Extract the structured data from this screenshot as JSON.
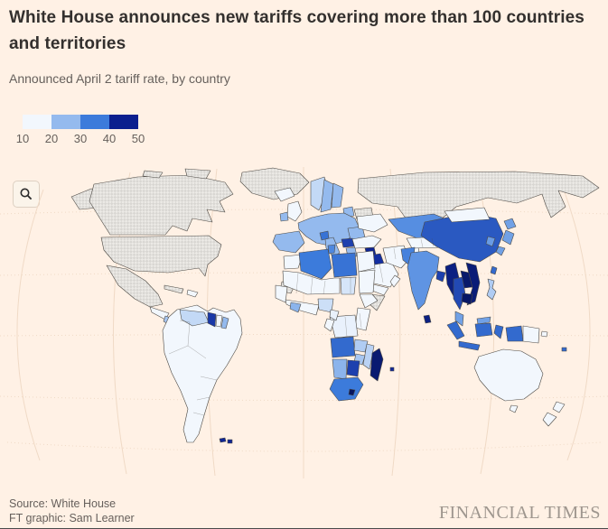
{
  "header": {
    "title": "White House announces new tariffs covering more than 100 countries and territories",
    "subtitle": "Announced April 2 tariff rate, by country"
  },
  "legend": {
    "ticks": [
      "10",
      "20",
      "30",
      "40",
      "50"
    ],
    "colors": [
      "#F2F7FD",
      "#94BAEE",
      "#3C7BDB",
      "#0B1F8E"
    ]
  },
  "map": {
    "zoom_button_icon": "magnifier-icon"
  },
  "footer": {
    "source": "Source: White House",
    "credit": "FT graphic: Sam Learner",
    "brand": "FINANCIAL TIMES"
  },
  "colors": {
    "background": "#FFF1E5",
    "title_text": "#33302E",
    "muted_text": "#66605C",
    "graticule": "#F0DAC6",
    "country_border": "#4D4A45",
    "no_data_hatch": "#D8D6D2",
    "brand_text": "#9E968E"
  },
  "chart_data": {
    "type": "heatmap",
    "subtype": "choropleth_world_map",
    "title": "White House announces new tariffs covering more than 100 countries and territories",
    "subtitle": "Announced April 2 tariff rate, by country",
    "unit": "percent tariff rate",
    "scale_ticks": [
      10,
      20,
      30,
      40,
      50
    ],
    "scale_stops": [
      {
        "value": 10,
        "color": "#F2F7FD"
      },
      {
        "value": 20,
        "color": "#94BAEE"
      },
      {
        "value": 30,
        "color": "#3C7BDB"
      },
      {
        "value": 40,
        "color": "#10279A"
      },
      {
        "value": 50,
        "color": "#06155F"
      }
    ],
    "legend_position": "top-left",
    "excluded": [
      "United States",
      "Canada",
      "Mexico",
      "Greenland",
      "Russia",
      "Belarus",
      "Cuba",
      "North Korea",
      "Somalia",
      "Western Sahara"
    ],
    "rates": {
      "United Kingdom": 10,
      "European Union": 20,
      "Iceland": 10,
      "Norway": 15,
      "Switzerland": 31,
      "Ukraine": 10,
      "Moldova": 31,
      "Serbia": 37,
      "Bosnia and Herzegovina": 35,
      "North Macedonia": 33,
      "Turkey": 10,
      "Kazakhstan": 27,
      "Uzbekistan": 10,
      "Afghanistan": 10,
      "Pakistan": 29,
      "India": 26,
      "Bangladesh": 37,
      "Sri Lanka": 44,
      "China": 34,
      "Mongolia": 10,
      "South Korea": 25,
      "Japan": 24,
      "Taiwan": 32,
      "Myanmar": 44,
      "Thailand": 36,
      "Laos": 48,
      "Vietnam": 46,
      "Cambodia": 49,
      "Malaysia": 24,
      "Philippines": 17,
      "Indonesia": 32,
      "Papua New Guinea": 10,
      "Fiji": 32,
      "Australia": 10,
      "New Zealand": 10,
      "Israel": 17,
      "Jordan": 20,
      "Syria": 41,
      "Iraq": 39,
      "Iran": 10,
      "Saudi Arabia": 10,
      "Yemen": 10,
      "Oman": 10,
      "Morocco": 10,
      "Algeria": 30,
      "Tunisia": 28,
      "Libya": 31,
      "Egypt": 10,
      "Sudan": 10,
      "Chad": 13,
      "Mali": 10,
      "Guinea": 10,
      "Ivory Coast": 21,
      "Ghana": 10,
      "Nigeria": 14,
      "Cameroon": 11,
      "Gabon": 10,
      "DR Congo": 11,
      "Ethiopia": 10,
      "Kenya": 10,
      "Tanzania": 10,
      "Angola": 32,
      "Zambia": 17,
      "Mozambique": 16,
      "Zimbabwe": 18,
      "Namibia": 21,
      "Botswana": 37,
      "South Africa": 30,
      "Lesotho": 50,
      "Madagascar": 47,
      "Mauritius": 40,
      "Venezuela": 15,
      "Guyana": 38,
      "Suriname": 10,
      "French Guiana": 20,
      "Brazil": 10,
      "Argentina": 10,
      "Chile": 10,
      "Colombia": 10,
      "Peru": 10,
      "Falkland Islands": 41,
      "Guatemala": 10,
      "Honduras": 10,
      "Nicaragua": 18,
      "Panama": 10,
      "Dominican Republic": 10,
      "Haiti": 10
    }
  }
}
